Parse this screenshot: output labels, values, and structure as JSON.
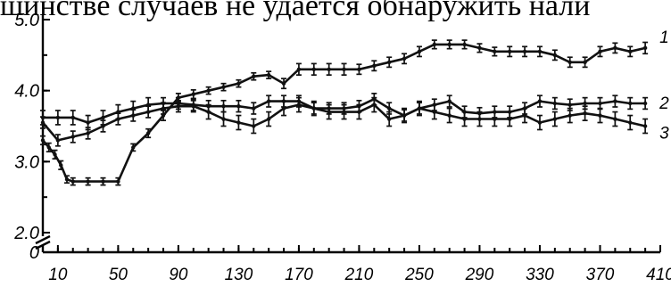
{
  "page": {
    "top_text": "шинстве случаев не удается обнаружить нали"
  },
  "chart_data": {
    "type": "line",
    "x_ticks": [
      "10",
      "50",
      "90",
      "130",
      "170",
      "210",
      "250",
      "290",
      "330",
      "370",
      "410"
    ],
    "y_ticks": [
      "5.0",
      "4.0",
      "3.0",
      "2.0",
      "0"
    ],
    "xlim": [
      0,
      410
    ],
    "ylim": [
      2.0,
      5.0
    ],
    "y_axis_break": true,
    "error_bars": true,
    "series": [
      {
        "name": "1",
        "x": [
          0,
          4,
          8,
          12,
          16,
          20,
          30,
          40,
          50,
          60,
          70,
          80,
          90,
          100,
          110,
          120,
          130,
          140,
          150,
          160,
          170,
          180,
          190,
          200,
          210,
          220,
          230,
          240,
          250,
          260,
          270,
          280,
          290,
          300,
          310,
          320,
          330,
          340,
          350,
          360,
          370,
          380,
          390,
          400
        ],
        "y": [
          3.3,
          3.2,
          3.1,
          2.95,
          2.75,
          2.72,
          2.72,
          2.72,
          2.72,
          3.2,
          3.4,
          3.65,
          3.9,
          3.95,
          4.0,
          4.05,
          4.1,
          4.2,
          4.22,
          4.1,
          4.3,
          4.3,
          4.3,
          4.3,
          4.3,
          4.35,
          4.4,
          4.45,
          4.55,
          4.65,
          4.65,
          4.65,
          4.6,
          4.55,
          4.55,
          4.55,
          4.55,
          4.5,
          4.4,
          4.4,
          4.55,
          4.6,
          4.55,
          4.6
        ],
        "err": [
          0.06,
          0.06,
          0.06,
          0.06,
          0.05,
          0.05,
          0.05,
          0.05,
          0.05,
          0.05,
          0.06,
          0.07,
          0.06,
          0.06,
          0.05,
          0.05,
          0.05,
          0.05,
          0.05,
          0.07,
          0.08,
          0.08,
          0.08,
          0.08,
          0.07,
          0.07,
          0.07,
          0.07,
          0.07,
          0.06,
          0.06,
          0.06,
          0.06,
          0.06,
          0.07,
          0.07,
          0.07,
          0.07,
          0.07,
          0.07,
          0.07,
          0.07,
          0.07,
          0.08
        ]
      },
      {
        "name": "2",
        "x": [
          0,
          10,
          20,
          30,
          40,
          50,
          60,
          70,
          80,
          90,
          100,
          110,
          120,
          130,
          140,
          150,
          160,
          170,
          180,
          190,
          200,
          210,
          220,
          230,
          240,
          250,
          260,
          270,
          280,
          290,
          300,
          310,
          320,
          330,
          340,
          350,
          360,
          370,
          380,
          390,
          400
        ],
        "y": [
          3.62,
          3.62,
          3.62,
          3.55,
          3.62,
          3.7,
          3.75,
          3.8,
          3.82,
          3.82,
          3.8,
          3.78,
          3.78,
          3.78,
          3.75,
          3.85,
          3.85,
          3.85,
          3.75,
          3.75,
          3.75,
          3.78,
          3.88,
          3.75,
          3.65,
          3.75,
          3.8,
          3.85,
          3.7,
          3.68,
          3.7,
          3.7,
          3.75,
          3.85,
          3.82,
          3.8,
          3.82,
          3.82,
          3.85,
          3.82,
          3.82
        ],
        "err": [
          0.1,
          0.1,
          0.1,
          0.1,
          0.1,
          0.1,
          0.1,
          0.1,
          0.08,
          0.08,
          0.08,
          0.08,
          0.08,
          0.08,
          0.08,
          0.08,
          0.08,
          0.08,
          0.08,
          0.08,
          0.08,
          0.08,
          0.08,
          0.08,
          0.08,
          0.08,
          0.08,
          0.08,
          0.08,
          0.08,
          0.08,
          0.08,
          0.08,
          0.08,
          0.08,
          0.08,
          0.08,
          0.08,
          0.08,
          0.08,
          0.08
        ]
      },
      {
        "name": "3",
        "x": [
          0,
          10,
          20,
          30,
          40,
          50,
          60,
          70,
          80,
          90,
          100,
          110,
          120,
          130,
          140,
          150,
          160,
          170,
          180,
          190,
          200,
          210,
          220,
          230,
          240,
          250,
          260,
          270,
          280,
          290,
          300,
          310,
          320,
          330,
          340,
          350,
          360,
          370,
          380,
          390,
          400
        ],
        "y": [
          3.55,
          3.3,
          3.35,
          3.4,
          3.5,
          3.6,
          3.65,
          3.7,
          3.75,
          3.78,
          3.78,
          3.7,
          3.6,
          3.55,
          3.5,
          3.6,
          3.75,
          3.8,
          3.75,
          3.7,
          3.7,
          3.7,
          3.8,
          3.6,
          3.65,
          3.75,
          3.7,
          3.65,
          3.6,
          3.6,
          3.6,
          3.6,
          3.65,
          3.55,
          3.6,
          3.65,
          3.68,
          3.65,
          3.6,
          3.55,
          3.5
        ],
        "err": [
          0.08,
          0.08,
          0.08,
          0.08,
          0.08,
          0.08,
          0.08,
          0.08,
          0.08,
          0.08,
          0.08,
          0.1,
          0.1,
          0.1,
          0.1,
          0.1,
          0.1,
          0.1,
          0.1,
          0.1,
          0.1,
          0.1,
          0.1,
          0.1,
          0.1,
          0.1,
          0.1,
          0.1,
          0.1,
          0.1,
          0.1,
          0.1,
          0.1,
          0.1,
          0.1,
          0.1,
          0.1,
          0.1,
          0.1,
          0.1,
          0.1
        ]
      }
    ]
  }
}
